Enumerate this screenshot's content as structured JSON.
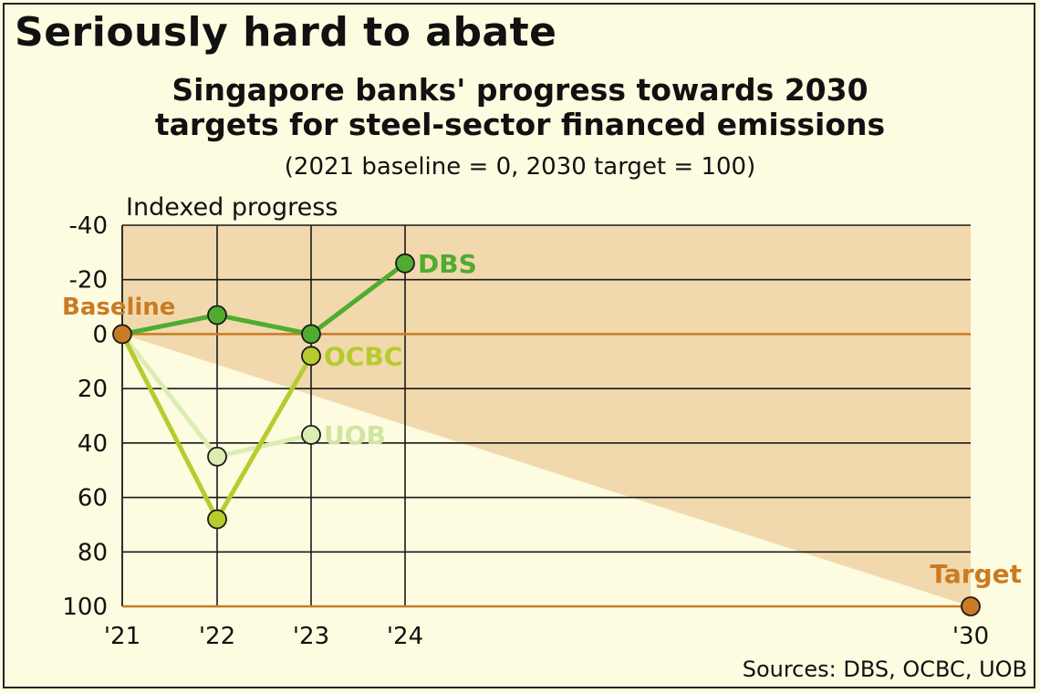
{
  "headline": "Seriously hard to abate",
  "subtitle_line1": "Singapore banks' progress towards 2030",
  "subtitle_line2": "targets for steel-sector financed emissions",
  "subtitle_note": "(2021 baseline = 0, 2030 target = 100)",
  "source": "Sources: DBS, OCBC, UOB",
  "colors": {
    "background": "#fdfbe0",
    "band": "#f1d9ad",
    "orange": "#c97b24",
    "dbs": "#4fac2f",
    "ocbc": "#b6cc2e",
    "uob": "#dcedb4"
  },
  "chart_data": {
    "type": "line",
    "ylabel": "Indexed progress",
    "y_axis_inverted": true,
    "ylim": [
      -40,
      100
    ],
    "yticks": [
      "-40",
      "-20",
      "0",
      "20",
      "40",
      "60",
      "80",
      "100"
    ],
    "ytick_values": [
      -40,
      -20,
      0,
      20,
      40,
      60,
      80,
      100
    ],
    "x": [
      2021,
      2022,
      2023,
      2024,
      2030
    ],
    "xtick_labels": [
      "'21",
      "'22",
      "'23",
      "'24",
      "'30"
    ],
    "grid": true,
    "series": [
      {
        "name": "DBS",
        "x": [
          2021,
          2022,
          2023,
          2024
        ],
        "values": [
          0,
          -7,
          0,
          -26
        ]
      },
      {
        "name": "OCBC",
        "x": [
          2021,
          2022,
          2023
        ],
        "values": [
          0,
          68,
          8
        ]
      },
      {
        "name": "UOB",
        "x": [
          2021,
          2022,
          2023
        ],
        "values": [
          0,
          45,
          37
        ]
      }
    ],
    "reference_points": [
      {
        "label": "Baseline",
        "x": 2021,
        "value": 0
      },
      {
        "label": "Target",
        "x": 2030,
        "value": 100
      }
    ]
  }
}
